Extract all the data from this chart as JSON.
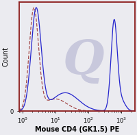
{
  "title": "",
  "xlabel": "Mouse CD4 (GK1.5) PE",
  "ylabel": "Count",
  "xlim_log": [
    -0.1,
    3.4
  ],
  "ylim": [
    0,
    1.05
  ],
  "background_color": "#ebebf0",
  "border_color": "#8B1A1A",
  "watermark_color": "#c8c8dc",
  "solid_line_color": "#1a1acc",
  "dashed_line_color": "#993333",
  "xlabel_fontsize": 7.0,
  "ylabel_fontsize": 7.0,
  "tick_fontsize": 6.0
}
